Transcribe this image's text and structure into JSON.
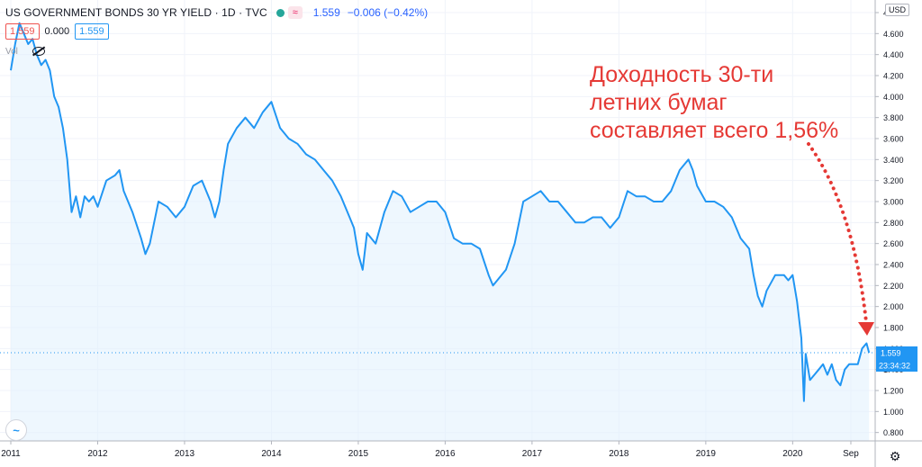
{
  "header": {
    "title": "US GOVERNMENT BONDS 30 YR YIELD · 1D · TVC",
    "badge_glyph": "≈",
    "price": "1.559",
    "change": "−0.006 (−0.42%)"
  },
  "subheader": {
    "sell": "1.559",
    "spread": "0.000",
    "buy": "1.559"
  },
  "volume_label": "Vol",
  "currency": "USD",
  "price_axis": {
    "current_price": "1.559",
    "countdown": "23:34:32"
  },
  "annotation": {
    "lines": [
      "Доходность 30-ти",
      "летних бумаг",
      "составляет всего 1,56%"
    ],
    "color": "#e53935"
  },
  "icons": {
    "logo": "tradingview-logo-icon",
    "settings": "gear-icon",
    "visibility": "eye-off-icon"
  },
  "colors": {
    "line": "#2196f3",
    "fill": "#e3f2fd",
    "price_tag": "#2196f3",
    "annotation": "#e53935"
  },
  "chart_data": {
    "type": "area",
    "title": "US GOVERNMENT BONDS 30 YR YIELD · 1D · TVC",
    "xlabel": "",
    "ylabel": "",
    "xlim": [
      2011.0,
      2020.95
    ],
    "ylim": [
      0.72,
      4.92
    ],
    "y_ticks": [
      0.8,
      1.0,
      1.2,
      1.4,
      1.6,
      1.8,
      2.0,
      2.2,
      2.4,
      2.6,
      2.8,
      3.0,
      3.2,
      3.4,
      3.6,
      3.8,
      4.0,
      4.2,
      4.4,
      4.6,
      4.8
    ],
    "y_tick_labels": [
      "0.800",
      "1.000",
      "1.200",
      "1.400",
      "1.600",
      "1.800",
      "2.000",
      "2.200",
      "2.400",
      "2.600",
      "2.800",
      "3.000",
      "3.200",
      "3.400",
      "3.600",
      "3.800",
      "4.000",
      "4.200",
      "4.400",
      "4.600",
      "4.800"
    ],
    "x_ticks": [
      2011.0,
      2012.0,
      2013.0,
      2014.0,
      2015.0,
      2016.0,
      2017.0,
      2018.0,
      2019.0,
      2020.0,
      2020.67
    ],
    "x_tick_labels": [
      "2011",
      "2012",
      "2013",
      "2014",
      "2015",
      "2016",
      "2017",
      "2018",
      "2019",
      "2020",
      "Sep"
    ],
    "grid": true,
    "legend": "none",
    "series": [
      {
        "values": [
          [
            2011.0,
            4.25
          ],
          [
            2011.05,
            4.5
          ],
          [
            2011.1,
            4.7
          ],
          [
            2011.15,
            4.6
          ],
          [
            2011.2,
            4.5
          ],
          [
            2011.25,
            4.55
          ],
          [
            2011.3,
            4.4
          ],
          [
            2011.35,
            4.3
          ],
          [
            2011.4,
            4.35
          ],
          [
            2011.45,
            4.25
          ],
          [
            2011.5,
            4.0
          ],
          [
            2011.55,
            3.9
          ],
          [
            2011.6,
            3.7
          ],
          [
            2011.65,
            3.4
          ],
          [
            2011.7,
            2.9
          ],
          [
            2011.75,
            3.05
          ],
          [
            2011.8,
            2.85
          ],
          [
            2011.85,
            3.05
          ],
          [
            2011.9,
            3.0
          ],
          [
            2011.95,
            3.05
          ],
          [
            2012.0,
            2.95
          ],
          [
            2012.1,
            3.2
          ],
          [
            2012.2,
            3.25
          ],
          [
            2012.25,
            3.3
          ],
          [
            2012.3,
            3.1
          ],
          [
            2012.4,
            2.9
          ],
          [
            2012.5,
            2.65
          ],
          [
            2012.55,
            2.5
          ],
          [
            2012.6,
            2.6
          ],
          [
            2012.65,
            2.8
          ],
          [
            2012.7,
            3.0
          ],
          [
            2012.8,
            2.95
          ],
          [
            2012.9,
            2.85
          ],
          [
            2013.0,
            2.95
          ],
          [
            2013.1,
            3.15
          ],
          [
            2013.2,
            3.2
          ],
          [
            2013.3,
            3.0
          ],
          [
            2013.35,
            2.85
          ],
          [
            2013.4,
            3.0
          ],
          [
            2013.45,
            3.3
          ],
          [
            2013.5,
            3.55
          ],
          [
            2013.6,
            3.7
          ],
          [
            2013.7,
            3.8
          ],
          [
            2013.8,
            3.7
          ],
          [
            2013.9,
            3.85
          ],
          [
            2014.0,
            3.95
          ],
          [
            2014.1,
            3.7
          ],
          [
            2014.2,
            3.6
          ],
          [
            2014.3,
            3.55
          ],
          [
            2014.4,
            3.45
          ],
          [
            2014.5,
            3.4
          ],
          [
            2014.6,
            3.3
          ],
          [
            2014.7,
            3.2
          ],
          [
            2014.8,
            3.05
          ],
          [
            2014.9,
            2.85
          ],
          [
            2014.95,
            2.75
          ],
          [
            2015.0,
            2.5
          ],
          [
            2015.05,
            2.35
          ],
          [
            2015.1,
            2.7
          ],
          [
            2015.2,
            2.6
          ],
          [
            2015.3,
            2.9
          ],
          [
            2015.4,
            3.1
          ],
          [
            2015.5,
            3.05
          ],
          [
            2015.6,
            2.9
          ],
          [
            2015.7,
            2.95
          ],
          [
            2015.8,
            3.0
          ],
          [
            2015.9,
            3.0
          ],
          [
            2016.0,
            2.9
          ],
          [
            2016.1,
            2.65
          ],
          [
            2016.2,
            2.6
          ],
          [
            2016.3,
            2.6
          ],
          [
            2016.4,
            2.55
          ],
          [
            2016.5,
            2.3
          ],
          [
            2016.55,
            2.2
          ],
          [
            2016.6,
            2.25
          ],
          [
            2016.7,
            2.35
          ],
          [
            2016.8,
            2.6
          ],
          [
            2016.9,
            3.0
          ],
          [
            2017.0,
            3.05
          ],
          [
            2017.1,
            3.1
          ],
          [
            2017.2,
            3.0
          ],
          [
            2017.3,
            3.0
          ],
          [
            2017.4,
            2.9
          ],
          [
            2017.5,
            2.8
          ],
          [
            2017.6,
            2.8
          ],
          [
            2017.7,
            2.85
          ],
          [
            2017.8,
            2.85
          ],
          [
            2017.9,
            2.75
          ],
          [
            2018.0,
            2.85
          ],
          [
            2018.1,
            3.1
          ],
          [
            2018.2,
            3.05
          ],
          [
            2018.3,
            3.05
          ],
          [
            2018.4,
            3.0
          ],
          [
            2018.5,
            3.0
          ],
          [
            2018.6,
            3.1
          ],
          [
            2018.7,
            3.3
          ],
          [
            2018.8,
            3.4
          ],
          [
            2018.85,
            3.3
          ],
          [
            2018.9,
            3.15
          ],
          [
            2019.0,
            3.0
          ],
          [
            2019.1,
            3.0
          ],
          [
            2019.2,
            2.95
          ],
          [
            2019.3,
            2.85
          ],
          [
            2019.4,
            2.65
          ],
          [
            2019.5,
            2.55
          ],
          [
            2019.55,
            2.3
          ],
          [
            2019.6,
            2.1
          ],
          [
            2019.65,
            2.0
          ],
          [
            2019.7,
            2.15
          ],
          [
            2019.8,
            2.3
          ],
          [
            2019.9,
            2.3
          ],
          [
            2019.95,
            2.25
          ],
          [
            2020.0,
            2.3
          ],
          [
            2020.05,
            2.05
          ],
          [
            2020.1,
            1.7
          ],
          [
            2020.13,
            1.1
          ],
          [
            2020.15,
            1.55
          ],
          [
            2020.2,
            1.3
          ],
          [
            2020.25,
            1.35
          ],
          [
            2020.3,
            1.4
          ],
          [
            2020.35,
            1.45
          ],
          [
            2020.4,
            1.35
          ],
          [
            2020.45,
            1.45
          ],
          [
            2020.5,
            1.3
          ],
          [
            2020.55,
            1.25
          ],
          [
            2020.6,
            1.4
          ],
          [
            2020.65,
            1.45
          ],
          [
            2020.7,
            1.45
          ],
          [
            2020.75,
            1.45
          ],
          [
            2020.8,
            1.6
          ],
          [
            2020.85,
            1.65
          ],
          [
            2020.88,
            1.56
          ]
        ]
      }
    ]
  }
}
